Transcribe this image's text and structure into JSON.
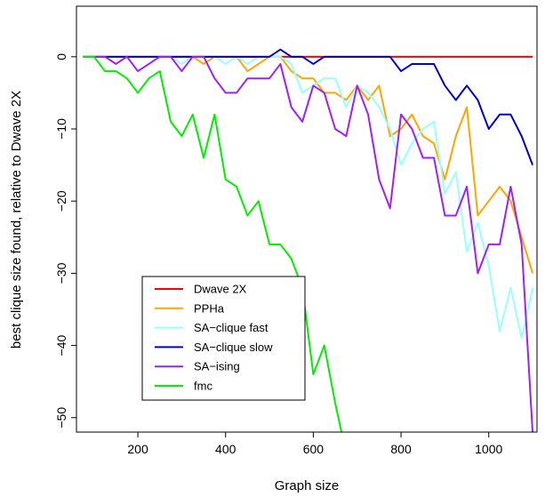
{
  "chart_data": {
    "type": "line",
    "title": "",
    "xlabel": "Graph size",
    "ylabel": "best clique size found, relative to Dwave 2X",
    "xlim": [
      60,
      1110
    ],
    "ylim": [
      -52,
      7
    ],
    "x_ticks": [
      200,
      400,
      600,
      800,
      1000
    ],
    "y_ticks": [
      0,
      -10,
      -20,
      -30,
      -40,
      -50
    ],
    "grid": false,
    "legend_position": "bottom-left",
    "x": [
      75,
      100,
      125,
      150,
      175,
      200,
      225,
      250,
      275,
      300,
      325,
      350,
      375,
      400,
      425,
      450,
      475,
      500,
      525,
      550,
      575,
      600,
      625,
      650,
      675,
      700,
      725,
      750,
      775,
      800,
      825,
      850,
      875,
      900,
      925,
      950,
      975,
      1000,
      1025,
      1050,
      1075,
      1100
    ],
    "series": [
      {
        "name": "Dwave 2X",
        "color": "#ff0000",
        "values": [
          0,
          0,
          0,
          0,
          0,
          0,
          0,
          0,
          0,
          0,
          0,
          0,
          0,
          0,
          0,
          0,
          0,
          0,
          0,
          0,
          0,
          0,
          0,
          0,
          0,
          0,
          0,
          0,
          0,
          0,
          0,
          0,
          0,
          0,
          0,
          0,
          0,
          0,
          0,
          0,
          0,
          0
        ]
      },
      {
        "name": "PPHa",
        "color": "#ffa500",
        "values": [
          0,
          0,
          0,
          0,
          0,
          0,
          0,
          0,
          0,
          0,
          0,
          -1,
          0,
          0,
          0,
          -2,
          -1,
          0,
          0,
          -2,
          -3,
          -3,
          -5,
          -5,
          -6,
          -4,
          -6,
          -4,
          -11,
          -10,
          -8,
          -11,
          -12,
          -17,
          -11,
          -7,
          -22,
          -20,
          -18,
          -20,
          -25,
          -30
        ]
      },
      {
        "name": "SA−clique fast",
        "color": "#99ffff",
        "values": [
          0,
          0,
          0,
          0,
          0,
          0,
          0,
          0,
          0,
          -1,
          0,
          0,
          0,
          -1,
          0,
          -1,
          0,
          0,
          0,
          -1,
          -5,
          -4,
          -3,
          -3,
          -7,
          -4,
          -5,
          -7,
          -10,
          -15,
          -12,
          -10,
          -9,
          -19,
          -16,
          -27,
          -23,
          -29,
          -38,
          -32,
          -39,
          -32
        ]
      },
      {
        "name": "SA−clique slow",
        "color": "#0000cd",
        "values": [
          0,
          0,
          0,
          0,
          0,
          0,
          0,
          0,
          0,
          0,
          0,
          0,
          0,
          0,
          0,
          0,
          0,
          0,
          1,
          0,
          0,
          -1,
          0,
          0,
          0,
          0,
          0,
          0,
          0,
          -2,
          -1,
          -1,
          -1,
          -4,
          -6,
          -4,
          -6,
          -10,
          -8,
          -8,
          -11,
          -15
        ]
      },
      {
        "name": "SA−ising",
        "color": "#a020f0",
        "values": [
          0,
          0,
          0,
          -1,
          0,
          -2,
          -1,
          0,
          0,
          -2,
          0,
          0,
          -3,
          -5,
          -5,
          -3,
          -3,
          -3,
          -1,
          -7,
          -9,
          -4,
          -5,
          -10,
          -11,
          -4,
          -8,
          -17,
          -21,
          -8,
          -10,
          -14,
          -14,
          -22,
          -22,
          -18,
          -30,
          -26,
          -26,
          -18,
          -26,
          -52
        ]
      },
      {
        "name": "fmc",
        "color": "#00ee00",
        "values": [
          0,
          0,
          -2,
          -2,
          -3,
          -5,
          -3,
          -2,
          -9,
          -11,
          -8,
          -14,
          -8,
          -17,
          -18,
          -22,
          -20,
          -26,
          -26,
          -28,
          -32,
          -44,
          -40,
          -48,
          -55,
          null,
          null,
          null,
          null,
          null,
          null,
          null,
          null,
          null,
          null,
          null,
          null,
          null,
          null,
          null,
          null,
          null
        ]
      }
    ]
  }
}
